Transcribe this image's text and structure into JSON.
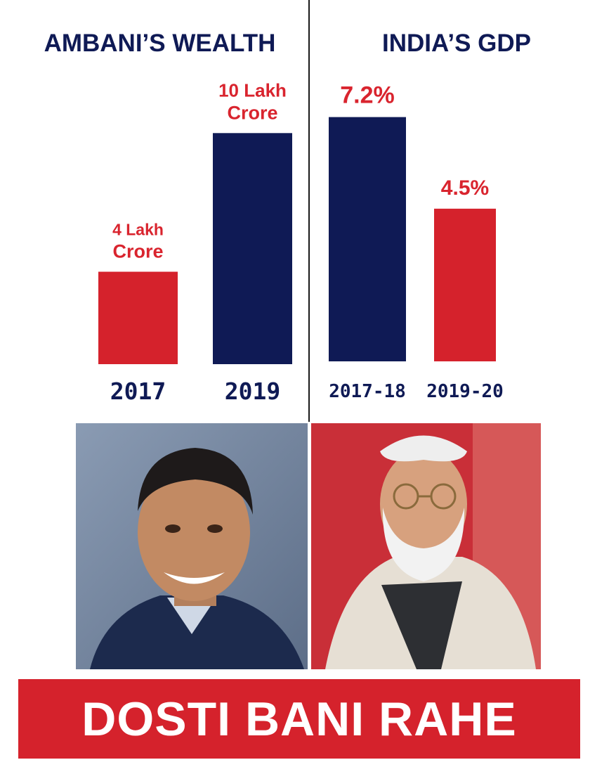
{
  "chart_data": [
    {
      "type": "bar",
      "title": "AMBANI’S WEALTH",
      "categories": [
        "2017",
        "2019"
      ],
      "values": [
        4,
        10
      ],
      "value_labels": [
        [
          "4 Lakh",
          "Crore"
        ],
        [
          "10 Lakh",
          "Crore"
        ]
      ],
      "bar_colors": [
        "#d5222c",
        "#0f1a55"
      ],
      "ylim": [
        0,
        11.5
      ],
      "grid": false
    },
    {
      "type": "bar",
      "title": "INDIA’S GDP",
      "categories": [
        "2017-18",
        "2019-20"
      ],
      "values": [
        7.2,
        4.5
      ],
      "value_labels": [
        [
          "7.2%"
        ],
        [
          "4.5%"
        ]
      ],
      "bar_colors": [
        "#0f1a55",
        "#d5222c"
      ],
      "ylim": [
        0,
        7.75
      ],
      "grid": false
    }
  ],
  "photos": {
    "left": "mukesh-ambani-portrait",
    "right": "narendra-modi-portrait"
  },
  "banner": {
    "text": "DOSTI BANI RAHE"
  },
  "colors": {
    "navy": "#0f1a55",
    "red": "#d5222c",
    "label_red": "#d9242e"
  }
}
